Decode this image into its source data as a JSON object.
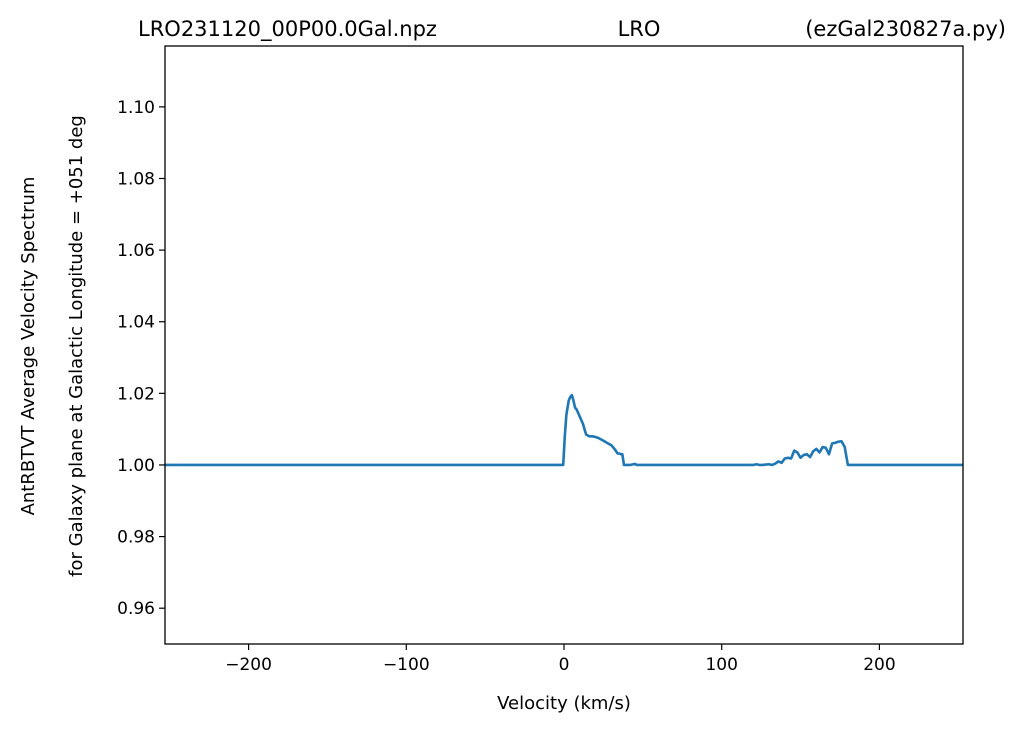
{
  "chart_data": {
    "type": "line",
    "title_left": "LRO231120_00P00.0Gal.npz",
    "title_center": "LRO",
    "title_right": "(ezGal230827a.py)",
    "xlabel": "Velocity (km/s)",
    "ylabel_line1": "AntRBTVT Average Velocity Spectrum",
    "ylabel_line2": "for Galaxy plane at Galactic Longitude = +051 deg",
    "xlim": [
      -253,
      253
    ],
    "ylim": [
      0.95,
      1.117
    ],
    "xticks": [
      {
        "value": -200,
        "label": "−200"
      },
      {
        "value": -100,
        "label": "−100"
      },
      {
        "value": 0,
        "label": "0"
      },
      {
        "value": 100,
        "label": "100"
      },
      {
        "value": 200,
        "label": "200"
      }
    ],
    "yticks": [
      {
        "value": 0.96,
        "label": "0.96"
      },
      {
        "value": 0.98,
        "label": "0.98"
      },
      {
        "value": 1.0,
        "label": "1.00"
      },
      {
        "value": 1.02,
        "label": "1.02"
      },
      {
        "value": 1.04,
        "label": "1.04"
      },
      {
        "value": 1.06,
        "label": "1.06"
      },
      {
        "value": 1.08,
        "label": "1.08"
      },
      {
        "value": 1.1,
        "label": "1.10"
      }
    ],
    "grid": false,
    "series": [
      {
        "color": "#1f77b4",
        "x": [
          -253,
          -0.5,
          0.5,
          1.5,
          3,
          4,
          5,
          6,
          7,
          8,
          10,
          12,
          14,
          16,
          18,
          20,
          22,
          24,
          26,
          28,
          30,
          32,
          34,
          35,
          36,
          37,
          38,
          40,
          42,
          44,
          45,
          46,
          48,
          50,
          120,
          122,
          124,
          126,
          128,
          130,
          132,
          134,
          136,
          138,
          140,
          142,
          144,
          146,
          148,
          150,
          152,
          154,
          156,
          158,
          160,
          162,
          164,
          166,
          168,
          170,
          172,
          174,
          176,
          178,
          180,
          253
        ],
        "y": [
          1.0,
          1.0,
          1.008,
          1.014,
          1.018,
          1.019,
          1.0195,
          1.018,
          1.016,
          1.0155,
          1.0135,
          1.0115,
          1.0085,
          1.008,
          1.008,
          1.0078,
          1.0075,
          1.007,
          1.0065,
          1.006,
          1.0055,
          1.0045,
          1.0032,
          1.0032,
          1.003,
          1.003,
          1.0,
          1.0,
          1.0,
          1.0002,
          1.0003,
          1.0,
          1.0,
          1.0,
          1.0,
          1.0002,
          1.0,
          1.0,
          1.0001,
          1.0002,
          1.0,
          1.0004,
          1.001,
          1.0006,
          1.0018,
          1.002,
          1.0018,
          1.004,
          1.0035,
          1.002,
          1.0028,
          1.003,
          1.0022,
          1.0038,
          1.0045,
          1.0035,
          1.005,
          1.0048,
          1.003,
          1.006,
          1.0062,
          1.0065,
          1.0066,
          1.005,
          1.0,
          1.0
        ]
      }
    ]
  }
}
